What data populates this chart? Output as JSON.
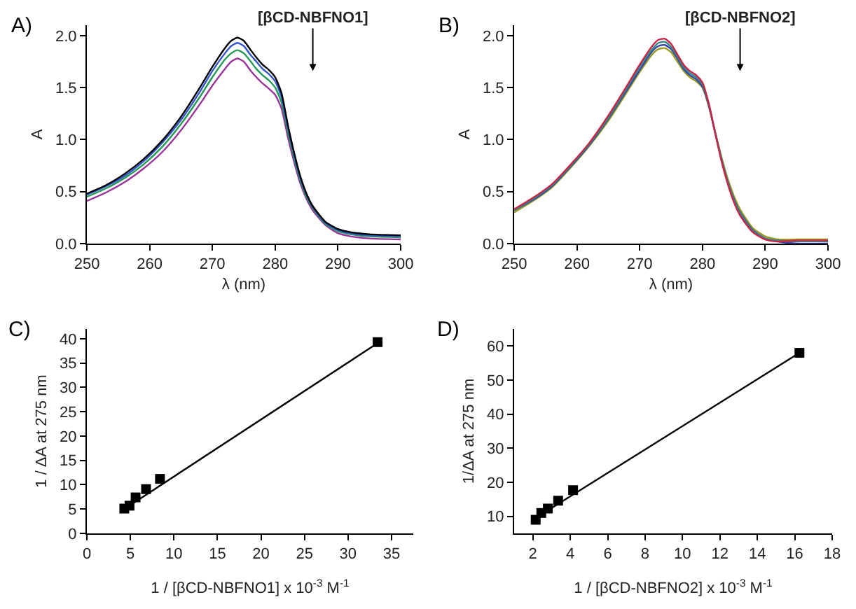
{
  "chart_data": [
    {
      "type": "line",
      "xlabel": "λ (nm)",
      "ylabel": "A",
      "annotations": [
        "A)",
        "[βCD-NBFNO1]"
      ],
      "xlim": [
        250,
        300
      ],
      "xticks": [
        250,
        260,
        270,
        280,
        290,
        300
      ],
      "ylim": [
        0,
        2.1
      ],
      "yticks": [
        {
          "value": 0,
          "label": "0.0"
        },
        {
          "value": 0.5,
          "label": "0.5"
        },
        {
          "value": 1,
          "label": "1.0"
        },
        {
          "value": 1.5,
          "label": "1.5"
        },
        {
          "value": 2,
          "label": "2.0"
        }
      ],
      "x": [
        250,
        253,
        256,
        259,
        262,
        265,
        268,
        270,
        272,
        273,
        274,
        275,
        276,
        277,
        278,
        279,
        280,
        281,
        282,
        283,
        284,
        285,
        286,
        288,
        290,
        292,
        295,
        300
      ],
      "series": [
        {
          "color": "#000000",
          "values": [
            0.48,
            0.56,
            0.67,
            0.81,
            0.99,
            1.22,
            1.5,
            1.7,
            1.88,
            1.95,
            1.98,
            1.95,
            1.87,
            1.79,
            1.72,
            1.67,
            1.6,
            1.45,
            1.15,
            0.88,
            0.65,
            0.48,
            0.36,
            0.21,
            0.14,
            0.11,
            0.09,
            0.08
          ]
        },
        {
          "color": "#3355cc",
          "values": [
            0.47,
            0.55,
            0.65,
            0.79,
            0.97,
            1.19,
            1.46,
            1.66,
            1.83,
            1.9,
            1.93,
            1.9,
            1.82,
            1.75,
            1.68,
            1.63,
            1.56,
            1.41,
            1.12,
            0.86,
            0.63,
            0.47,
            0.35,
            0.2,
            0.13,
            0.1,
            0.08,
            0.07
          ]
        },
        {
          "color": "#229955",
          "values": [
            0.45,
            0.53,
            0.63,
            0.76,
            0.93,
            1.15,
            1.41,
            1.6,
            1.77,
            1.83,
            1.86,
            1.83,
            1.76,
            1.68,
            1.62,
            1.57,
            1.5,
            1.36,
            1.08,
            0.83,
            0.61,
            0.45,
            0.34,
            0.19,
            0.12,
            0.09,
            0.07,
            0.06
          ]
        },
        {
          "color": "#993399",
          "values": [
            0.41,
            0.49,
            0.59,
            0.72,
            0.88,
            1.09,
            1.34,
            1.52,
            1.68,
            1.75,
            1.78,
            1.75,
            1.67,
            1.6,
            1.54,
            1.49,
            1.43,
            1.3,
            1.03,
            0.79,
            0.58,
            0.43,
            0.32,
            0.18,
            0.1,
            0.07,
            0.05,
            0.04
          ]
        }
      ]
    },
    {
      "type": "line",
      "xlabel": "λ (nm)",
      "ylabel": "A",
      "annotations": [
        "B)",
        "[βCD-NBFNO2]"
      ],
      "xlim": [
        250,
        300
      ],
      "xticks": [
        250,
        260,
        270,
        280,
        290,
        300
      ],
      "ylim": [
        0,
        2.1
      ],
      "yticks": [
        {
          "value": 0,
          "label": "0.0"
        },
        {
          "value": 0.5,
          "label": "0.5"
        },
        {
          "value": 1,
          "label": "1.0"
        },
        {
          "value": 1.5,
          "label": "1.5"
        },
        {
          "value": 2,
          "label": "2.0"
        }
      ],
      "x": [
        250,
        253,
        256,
        259,
        262,
        265,
        268,
        270,
        272,
        273,
        274,
        275,
        276,
        277,
        278,
        279,
        280,
        281,
        282,
        283,
        284,
        285,
        286,
        288,
        290,
        292,
        295,
        300
      ],
      "series": [
        {
          "color": "#cc2244",
          "values": [
            0.33,
            0.44,
            0.57,
            0.76,
            0.97,
            1.23,
            1.52,
            1.72,
            1.9,
            1.96,
            1.97,
            1.92,
            1.82,
            1.72,
            1.66,
            1.62,
            1.55,
            1.35,
            1.07,
            0.8,
            0.58,
            0.4,
            0.27,
            0.11,
            0.04,
            0.02,
            0.03,
            0.03
          ]
        },
        {
          "color": "#338888",
          "values": [
            0.32,
            0.43,
            0.56,
            0.75,
            0.96,
            1.21,
            1.5,
            1.7,
            1.87,
            1.93,
            1.94,
            1.89,
            1.8,
            1.7,
            1.64,
            1.6,
            1.53,
            1.34,
            1.08,
            0.82,
            0.6,
            0.42,
            0.29,
            0.12,
            0.05,
            0.03,
            0.02,
            0.02
          ]
        },
        {
          "color": "#3344aa",
          "values": [
            0.32,
            0.42,
            0.55,
            0.74,
            0.95,
            1.2,
            1.48,
            1.67,
            1.85,
            1.9,
            1.91,
            1.87,
            1.78,
            1.68,
            1.62,
            1.58,
            1.51,
            1.33,
            1.07,
            0.82,
            0.6,
            0.43,
            0.3,
            0.13,
            0.05,
            0.02,
            0.0,
            0.0
          ]
        },
        {
          "color": "#999922",
          "values": [
            0.3,
            0.41,
            0.54,
            0.73,
            0.94,
            1.18,
            1.46,
            1.65,
            1.82,
            1.87,
            1.88,
            1.84,
            1.75,
            1.66,
            1.6,
            1.56,
            1.5,
            1.32,
            1.08,
            0.84,
            0.63,
            0.46,
            0.33,
            0.15,
            0.07,
            0.04,
            0.04,
            0.04
          ]
        }
      ]
    },
    {
      "type": "scatter",
      "xlabel": "1 / [βCD-NBFNO1] x 10$^{-3}$ M$^{-1}$",
      "ylabel": "1 / ΔA at 275 nm",
      "annotations": [
        "C)"
      ],
      "xlim": [
        0,
        37.5
      ],
      "xticks": [
        0,
        5,
        10,
        15,
        20,
        25,
        30,
        35
      ],
      "ylim": [
        0,
        42
      ],
      "yticks": [
        0,
        5,
        10,
        15,
        20,
        25,
        30,
        35,
        40
      ],
      "marker": "square",
      "series": [
        {
          "type": "scatter",
          "color": "#000000",
          "x": [
            4.3,
            4.9,
            5.6,
            6.8,
            8.4,
            33.4
          ],
          "values": [
            5.1,
            5.7,
            7.4,
            9.1,
            11.2,
            39.3
          ]
        },
        {
          "type": "line",
          "color": "#000000",
          "marker": "none",
          "x": [
            4.3,
            33.4
          ],
          "values": [
            5.0,
            39.1
          ]
        }
      ]
    },
    {
      "type": "scatter",
      "xlabel": "1 / [βCD-NBFNO2] x 10$^{-3}$ M$^{-1}$",
      "ylabel": "1/ΔA at 275 nm",
      "annotations": [
        "D)"
      ],
      "xlim": [
        1,
        18
      ],
      "xticks": [
        2,
        4,
        6,
        8,
        10,
        12,
        14,
        16,
        18
      ],
      "ylim": [
        5,
        65
      ],
      "yticks": [
        10,
        20,
        30,
        40,
        50,
        60
      ],
      "marker": "square",
      "series": [
        {
          "type": "scatter",
          "color": "#000000",
          "x": [
            2.15,
            2.45,
            2.8,
            3.35,
            4.15,
            16.25
          ],
          "values": [
            9.0,
            11.0,
            12.3,
            14.6,
            17.7,
            58.0
          ]
        },
        {
          "type": "line",
          "color": "#000000",
          "marker": "none",
          "x": [
            2.15,
            16.25
          ],
          "values": [
            9.5,
            58.0
          ]
        }
      ]
    }
  ]
}
